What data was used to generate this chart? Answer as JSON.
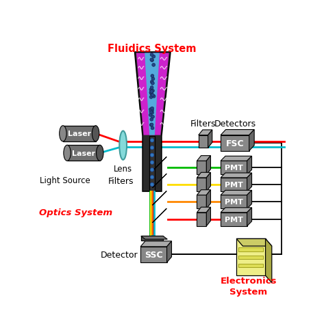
{
  "title": "Fluidics System",
  "bg_color": "#ffffff",
  "optics_label": "Optics System",
  "electronics_label": "Electronics\nSystem",
  "light_source_label": "Light Source",
  "lens_label": "Lens",
  "filters_label_h": "Filters",
  "detectors_label_h": "Detectors",
  "filters_label_v": "Filters",
  "detector_label": "Detector",
  "fig_w": 4.73,
  "fig_h": 4.81,
  "dpi": 100
}
